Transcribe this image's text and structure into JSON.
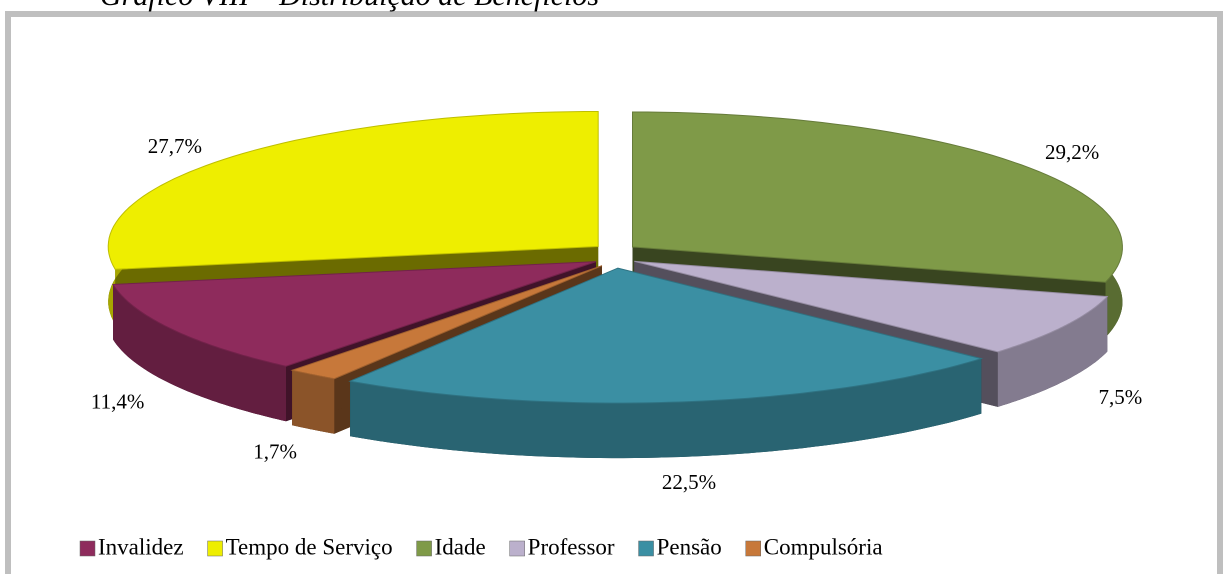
{
  "chart_data": {
    "type": "pie3d",
    "title": "Gráfico VIII – Distribuição de Benefícios",
    "categories": [
      "Invalidez",
      "Tempo de Serviço",
      "Idade",
      "Professor",
      "Pensão",
      "Compulsória"
    ],
    "values": [
      11.4,
      27.7,
      29.2,
      7.5,
      22.5,
      1.7
    ],
    "value_labels": [
      "11,4%",
      "27,7%",
      "29,2%",
      "7,5%",
      "22,5%",
      "1,7%"
    ],
    "colors": [
      "#8e2b5c",
      "#eeee00",
      "#7f9a48",
      "#bbb0cc",
      "#3b8fa3",
      "#c7783a"
    ],
    "legend": "bottom"
  }
}
